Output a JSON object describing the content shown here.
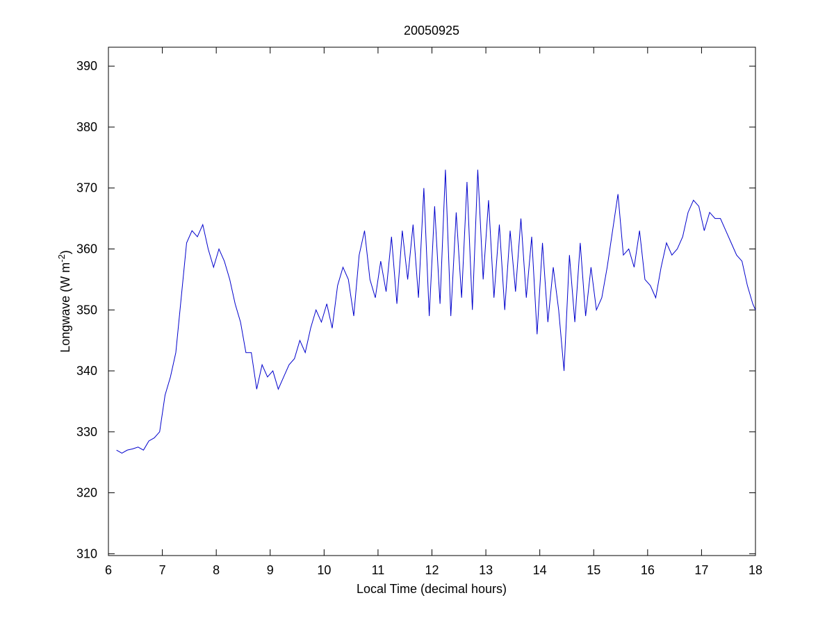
{
  "chart_data": {
    "type": "line",
    "title": "20050925",
    "xlabel": "Local Time (decimal hours)",
    "ylabel": [
      "Longwave (W m",
      "-2",
      ")"
    ],
    "xlim": [
      6,
      18
    ],
    "ylim": [
      309.7,
      393.1
    ],
    "xticks": [
      6,
      7,
      8,
      9,
      10,
      11,
      12,
      13,
      14,
      15,
      16,
      17,
      18
    ],
    "yticks": [
      310,
      320,
      330,
      340,
      350,
      360,
      370,
      380,
      390
    ],
    "grid": false,
    "x": [
      6.15,
      6.25,
      6.35,
      6.45,
      6.55,
      6.65,
      6.75,
      6.85,
      6.95,
      7.05,
      7.15,
      7.25,
      7.35,
      7.45,
      7.55,
      7.65,
      7.75,
      7.85,
      7.95,
      8.05,
      8.15,
      8.25,
      8.35,
      8.45,
      8.55,
      8.65,
      8.75,
      8.85,
      8.95,
      9.05,
      9.15,
      9.25,
      9.35,
      9.45,
      9.55,
      9.65,
      9.75,
      9.85,
      9.95,
      10.05,
      10.15,
      10.25,
      10.35,
      10.45,
      10.55,
      10.65,
      10.75,
      10.85,
      10.95,
      11.05,
      11.15,
      11.25,
      11.35,
      11.45,
      11.55,
      11.65,
      11.75,
      11.85,
      11.95,
      12.05,
      12.15,
      12.25,
      12.35,
      12.45,
      12.55,
      12.65,
      12.75,
      12.85,
      12.95,
      13.05,
      13.15,
      13.25,
      13.35,
      13.45,
      13.55,
      13.65,
      13.75,
      13.85,
      13.95,
      14.05,
      14.15,
      14.25,
      14.35,
      14.45,
      14.55,
      14.65,
      14.75,
      14.85,
      14.95,
      15.05,
      15.15,
      15.25,
      15.35,
      15.45,
      15.55,
      15.65,
      15.75,
      15.85,
      15.95,
      16.05,
      16.15,
      16.25,
      16.35,
      16.45,
      16.55,
      16.65,
      16.75,
      16.85,
      16.95,
      17.05,
      17.15,
      17.25,
      17.35,
      17.45,
      17.55,
      17.65,
      17.75,
      17.85,
      17.95,
      18.0
    ],
    "series": [
      {
        "name": "Longwave",
        "color": "#0000cc",
        "values": [
          327,
          326.5,
          327,
          327.2,
          327.5,
          327,
          328.5,
          329,
          330,
          336,
          339,
          343,
          352,
          361,
          363,
          362,
          364,
          360,
          357,
          360,
          358,
          355,
          351,
          348,
          343,
          343,
          337,
          341,
          339,
          340,
          337,
          339,
          341,
          342,
          345,
          343,
          347,
          350,
          348,
          351,
          347,
          354,
          357,
          355,
          349,
          359,
          363,
          355,
          352,
          358,
          353,
          362,
          351,
          363,
          355,
          364,
          352,
          370,
          349,
          367,
          351,
          373,
          349,
          366,
          352,
          371,
          350,
          373,
          355,
          368,
          352,
          364,
          350,
          363,
          353,
          365,
          352,
          362,
          346,
          361,
          348,
          357,
          350,
          340,
          359,
          348,
          361,
          349,
          357,
          350,
          352,
          357,
          363,
          369,
          359,
          360,
          357,
          363,
          355,
          354,
          352,
          357,
          361,
          359,
          360,
          362,
          366,
          368,
          367,
          363,
          366,
          365,
          365,
          363,
          361,
          359,
          358,
          354,
          351,
          350
        ]
      }
    ]
  }
}
